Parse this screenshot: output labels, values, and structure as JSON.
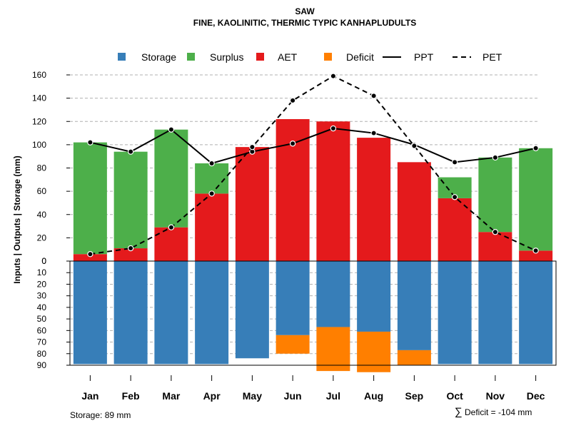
{
  "chart_data": {
    "type": "bar",
    "title": "SAW",
    "subtitle": "FINE, KAOLINITIC, THERMIC TYPIC KANHAPLUDULTS",
    "ylabel": "Inputs | Outputs | Storage    (mm)",
    "categories": [
      "Jan",
      "Feb",
      "Mar",
      "Apr",
      "May",
      "Jun",
      "Jul",
      "Aug",
      "Sep",
      "Oct",
      "Nov",
      "Dec"
    ],
    "upper_panel": {
      "ylim": [
        0,
        160
      ],
      "yticks": [
        "0",
        "20",
        "40",
        "60",
        "80",
        "100",
        "120",
        "140",
        "160"
      ],
      "series": [
        {
          "name": "AET",
          "color": "#E41A1C",
          "values": [
            6,
            11,
            29,
            58,
            98,
            122,
            120,
            106,
            85,
            54,
            25,
            9
          ]
        },
        {
          "name": "Surplus",
          "color": "#4DAF4A",
          "values": [
            96,
            83,
            84,
            26,
            0,
            0,
            0,
            0,
            0,
            18,
            64,
            88
          ]
        }
      ],
      "lines": [
        {
          "name": "PPT",
          "style": "solid",
          "color": "#000000",
          "values": [
            102,
            94,
            113,
            84,
            94,
            101,
            114,
            110,
            100,
            85,
            89,
            97
          ]
        },
        {
          "name": "PET",
          "style": "dashed",
          "color": "#000000",
          "values": [
            6,
            11,
            29,
            58,
            98,
            138,
            159,
            142,
            99,
            55,
            25,
            9
          ]
        }
      ]
    },
    "lower_panel": {
      "ylim": [
        0,
        90
      ],
      "yticks": [
        "0",
        "10",
        "20",
        "30",
        "40",
        "50",
        "60",
        "70",
        "80",
        "90"
      ],
      "series": [
        {
          "name": "Storage",
          "color": "#377EB8",
          "values": [
            89,
            89,
            89,
            89,
            84,
            64,
            57,
            61,
            77,
            89,
            89,
            89
          ]
        },
        {
          "name": "Deficit",
          "color": "#FF7F00",
          "values": [
            0,
            0,
            0,
            0,
            0,
            16,
            38,
            35,
            13,
            0,
            0,
            0
          ]
        }
      ]
    },
    "legend": {
      "placement": "top",
      "entries": [
        {
          "label": "Storage",
          "kind": "box",
          "color": "#377EB8"
        },
        {
          "label": "Surplus",
          "kind": "box",
          "color": "#4DAF4A"
        },
        {
          "label": "AET",
          "kind": "box",
          "color": "#E41A1C"
        },
        {
          "label": "Deficit",
          "kind": "box",
          "color": "#FF7F00"
        },
        {
          "label": "PPT",
          "kind": "line-solid",
          "color": "#000000"
        },
        {
          "label": "PET",
          "kind": "line-dashed",
          "color": "#000000"
        }
      ]
    },
    "footnotes": {
      "storage": "Storage: 89 mm",
      "deficit_symbol": "∑",
      "deficit": "Deficit = -104 mm"
    }
  }
}
